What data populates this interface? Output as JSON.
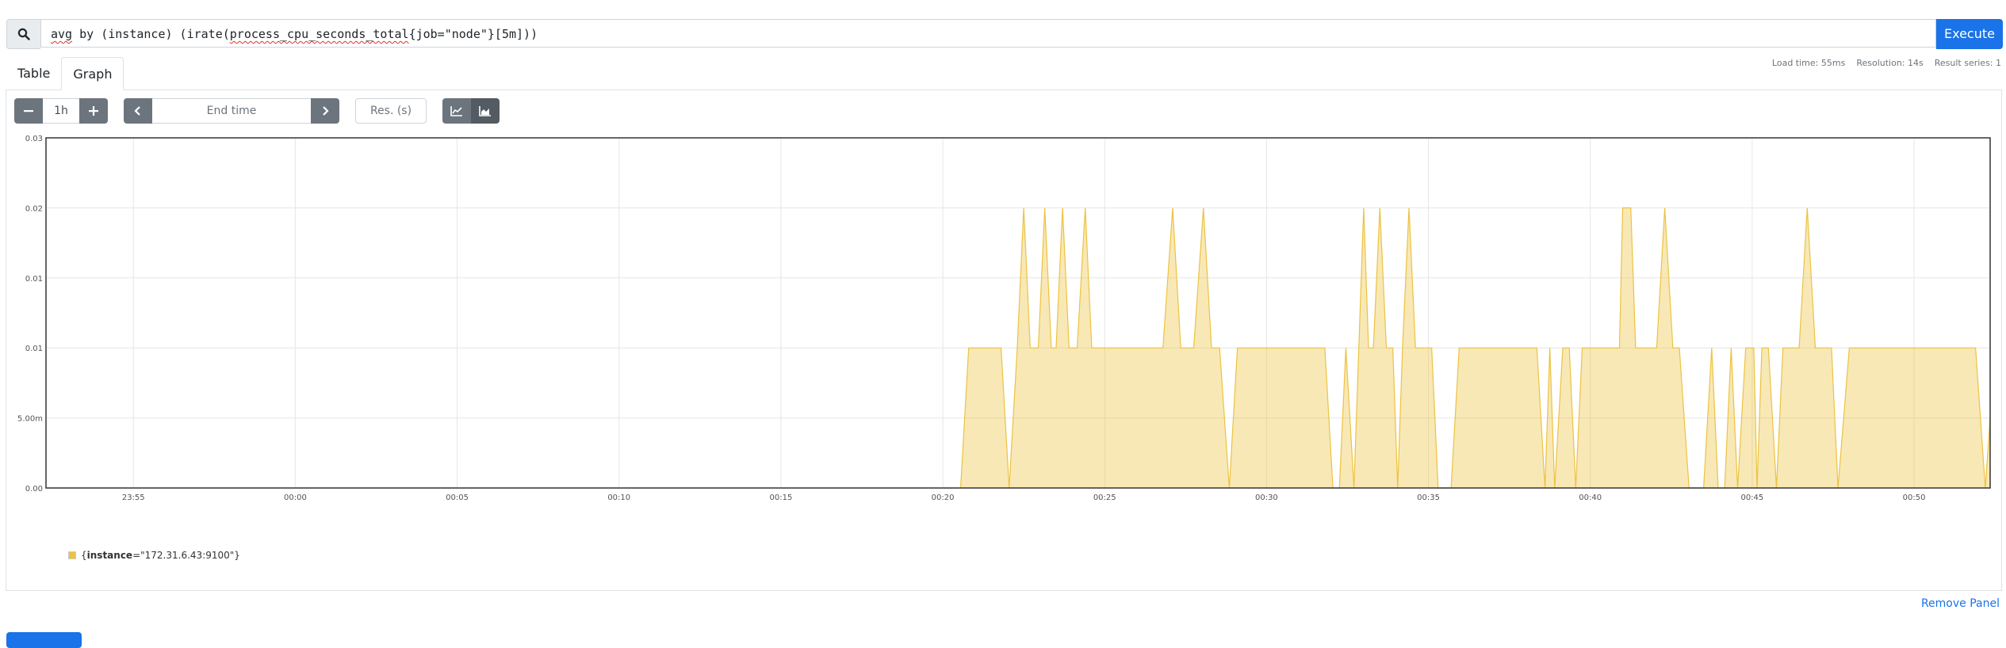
{
  "query": {
    "parts": [
      {
        "text": "avg",
        "spell": true
      },
      {
        "text": " by (instance) (irate(",
        "spell": false
      },
      {
        "text": "process_cpu_seconds_total",
        "spell": true
      },
      {
        "text": "{job=\"node\"}[5m]))",
        "spell": false
      }
    ],
    "execute_label": "Execute"
  },
  "tabs": [
    {
      "label": "Table",
      "active": false
    },
    {
      "label": "Graph",
      "active": true
    }
  ],
  "stats": {
    "load_time": "Load time: 55ms",
    "resolution": "Resolution: 14s",
    "result_series": "Result series: 1"
  },
  "controls": {
    "range": "1h",
    "end_time_placeholder": "End time",
    "res_placeholder": "Res. (s)"
  },
  "chart_data": {
    "type": "area",
    "stacked": true,
    "ylim": [
      0,
      0.025
    ],
    "y_ticks": [
      {
        "v": 0,
        "label": "0.00"
      },
      {
        "v": 0.005,
        "label": "5.00m"
      },
      {
        "v": 0.01,
        "label": "0.01"
      },
      {
        "v": 0.015,
        "label": "0.01"
      },
      {
        "v": 0.02,
        "label": "0.02"
      },
      {
        "v": 0.025,
        "label": "0.03"
      }
    ],
    "x_ticks": [
      "23:55",
      "00:00",
      "00:05",
      "00:10",
      "00:15",
      "00:20",
      "00:25",
      "00:30",
      "00:35",
      "00:40",
      "00:45",
      "00:50"
    ],
    "x_range_minutes": [
      -7.7,
      52.35
    ],
    "series": [
      {
        "name": "{instance=\"172.31.6.43:9100\"}",
        "color": "#edc240",
        "points": [
          [
            20.55,
            0
          ],
          [
            20.8,
            0.01
          ],
          [
            21.8,
            0.01
          ],
          [
            22.05,
            0
          ],
          [
            22.3,
            0.01
          ],
          [
            22.5,
            0.02
          ],
          [
            22.7,
            0.01
          ],
          [
            22.95,
            0.01
          ],
          [
            23.15,
            0.02
          ],
          [
            23.35,
            0.01
          ],
          [
            23.5,
            0.01
          ],
          [
            23.7,
            0.02
          ],
          [
            23.9,
            0.01
          ],
          [
            24.15,
            0.01
          ],
          [
            24.4,
            0.02
          ],
          [
            24.6,
            0.01
          ],
          [
            26.8,
            0.01
          ],
          [
            27.1,
            0.02
          ],
          [
            27.35,
            0.01
          ],
          [
            27.75,
            0.01
          ],
          [
            28.05,
            0.02
          ],
          [
            28.3,
            0.01
          ],
          [
            28.55,
            0.01
          ],
          [
            28.85,
            0
          ],
          [
            29.1,
            0.01
          ],
          [
            31.8,
            0.01
          ],
          [
            32.05,
            0
          ],
          [
            32.25,
            0
          ],
          [
            32.45,
            0.01
          ],
          [
            32.7,
            0
          ],
          [
            32.85,
            0.01
          ],
          [
            33.0,
            0.02
          ],
          [
            33.15,
            0.01
          ],
          [
            33.3,
            0.01
          ],
          [
            33.5,
            0.02
          ],
          [
            33.7,
            0.01
          ],
          [
            33.9,
            0.01
          ],
          [
            34.05,
            0
          ],
          [
            34.2,
            0.01
          ],
          [
            34.4,
            0.02
          ],
          [
            34.6,
            0.01
          ],
          [
            35.1,
            0.01
          ],
          [
            35.3,
            0
          ],
          [
            35.7,
            0
          ],
          [
            35.95,
            0.01
          ],
          [
            38.35,
            0.01
          ],
          [
            38.6,
            0
          ],
          [
            38.75,
            0.01
          ],
          [
            38.9,
            0
          ],
          [
            39.15,
            0.01
          ],
          [
            39.35,
            0.01
          ],
          [
            39.55,
            0
          ],
          [
            39.75,
            0.01
          ],
          [
            40.9,
            0.01
          ],
          [
            41.0,
            0.02
          ],
          [
            41.25,
            0.02
          ],
          [
            41.4,
            0.01
          ],
          [
            42.05,
            0.01
          ],
          [
            42.3,
            0.02
          ],
          [
            42.55,
            0.01
          ],
          [
            42.75,
            0.01
          ],
          [
            43.05,
            0
          ],
          [
            43.5,
            0
          ],
          [
            43.75,
            0.01
          ],
          [
            43.95,
            0
          ],
          [
            44.15,
            0
          ],
          [
            44.35,
            0.01
          ],
          [
            44.55,
            0
          ],
          [
            44.8,
            0.01
          ],
          [
            45.05,
            0.01
          ],
          [
            45.15,
            0
          ],
          [
            45.3,
            0.01
          ],
          [
            45.5,
            0.01
          ],
          [
            45.75,
            0
          ],
          [
            45.95,
            0.01
          ],
          [
            46.45,
            0.01
          ],
          [
            46.7,
            0.02
          ],
          [
            46.95,
            0.01
          ],
          [
            47.45,
            0.01
          ],
          [
            47.65,
            0
          ],
          [
            48.0,
            0.01
          ],
          [
            51.9,
            0.01
          ],
          [
            52.2,
            0
          ],
          [
            52.35,
            0.005
          ]
        ]
      }
    ]
  }
}
